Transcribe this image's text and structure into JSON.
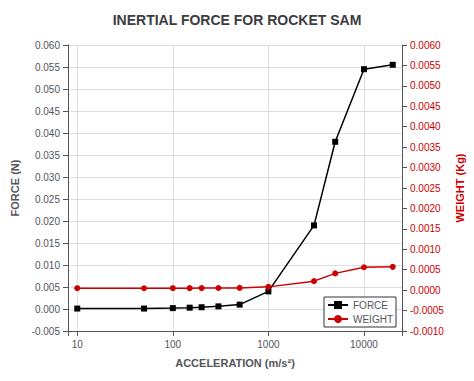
{
  "chart_data": {
    "type": "line",
    "title": "INERTIAL FORCE FOR ROCKET SAM",
    "xlabel": "ACCELERATION (m/s²)",
    "ylabel": "FORCE (N)",
    "y2label": "WEIGHT (Kg)",
    "x": [
      10,
      50,
      100,
      150,
      200,
      300,
      500,
      1000,
      3000,
      5000,
      10000,
      20000
    ],
    "series": [
      {
        "name": "FORCE",
        "color": "#000000",
        "marker": "square",
        "line_style": "solid",
        "values": [
          0.0001,
          0.0001,
          0.0002,
          0.0003,
          0.0004,
          0.0006,
          0.001,
          0.004,
          0.019,
          0.038,
          0.0545,
          0.0555
        ]
      },
      {
        "name": "WEIGHT",
        "color": "#cc0000",
        "marker": "circle",
        "line_style": "solid",
        "axis": "y2",
        "values": [
          4.8e-05,
          4.6e-05,
          4.8e-05,
          4.9e-05,
          5e-05,
          5.2e-05,
          5.5e-05,
          8e-05,
          0.00022,
          0.00041,
          0.00056,
          0.00057
        ]
      }
    ],
    "log": "x",
    "xlim": [
      8,
      25000
    ],
    "xticks": [
      10,
      100,
      1000,
      10000
    ],
    "ylim": [
      -0.005,
      0.06
    ],
    "yticks": [
      -0.005,
      {
        "value": 0,
        "label": "0.000"
      },
      0.005,
      {
        "value": 0.01,
        "label": "0.010"
      },
      0.015,
      {
        "value": 0.02,
        "label": "0.020"
      },
      0.025,
      {
        "value": 0.03,
        "label": "0.030"
      },
      0.035,
      {
        "value": 0.04,
        "label": "0.040"
      },
      0.045,
      {
        "value": 0.05,
        "label": "0.050"
      },
      0.055,
      {
        "value": 0.06,
        "label": "0.060"
      }
    ],
    "y2lim": [
      -0.001,
      0.006
    ],
    "y2ticks": [
      {
        "value": -0.001,
        "label": "-0.0010"
      },
      -0.0005,
      {
        "value": 0,
        "label": "0.0000"
      },
      0.0005,
      {
        "value": 0.001,
        "label": "0.0010"
      },
      0.0015,
      {
        "value": 0.002,
        "label": "0.0020"
      },
      0.0025,
      {
        "value": 0.003,
        "label": "0.0030"
      },
      0.0035,
      {
        "value": 0.004,
        "label": "0.0040"
      },
      0.0045,
      {
        "value": 0.005,
        "label": "0.0050"
      },
      0.0055,
      {
        "value": 0.006,
        "label": "0.0060"
      }
    ],
    "grid": true,
    "legend": "lower right"
  }
}
